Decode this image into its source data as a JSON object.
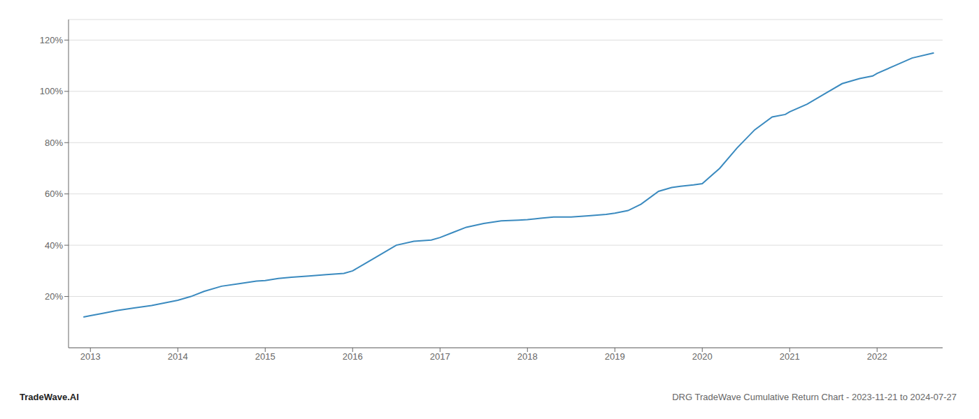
{
  "chart_data": {
    "type": "line",
    "x": [
      2012.92,
      2013.0,
      2013.15,
      2013.3,
      2013.5,
      2013.7,
      2013.85,
      2014.0,
      2014.15,
      2014.3,
      2014.5,
      2014.7,
      2014.9,
      2015.0,
      2015.15,
      2015.3,
      2015.5,
      2015.7,
      2015.9,
      2016.0,
      2016.15,
      2016.3,
      2016.5,
      2016.7,
      2016.9,
      2017.0,
      2017.15,
      2017.3,
      2017.5,
      2017.7,
      2017.9,
      2018.0,
      2018.15,
      2018.3,
      2018.5,
      2018.7,
      2018.9,
      2019.0,
      2019.15,
      2019.3,
      2019.5,
      2019.65,
      2019.75,
      2019.9,
      2020.0,
      2020.2,
      2020.4,
      2020.6,
      2020.8,
      2020.95,
      2021.0,
      2021.2,
      2021.4,
      2021.6,
      2021.8,
      2021.95,
      2022.0,
      2022.2,
      2022.4,
      2022.65
    ],
    "values": [
      12,
      12.5,
      13.5,
      14.5,
      15.5,
      16.5,
      17.5,
      18.5,
      20,
      22,
      24,
      25,
      26,
      26.2,
      27,
      27.5,
      28,
      28.5,
      29,
      30,
      33,
      36,
      40,
      41.5,
      42,
      43,
      45,
      47,
      48.5,
      49.5,
      49.8,
      50,
      50.5,
      51,
      51,
      51.5,
      52,
      52.5,
      53.5,
      56,
      61,
      62.5,
      63,
      63.5,
      64,
      70,
      78,
      85,
      90,
      91,
      92,
      95,
      99,
      103,
      105,
      106,
      107,
      110,
      113,
      115
    ],
    "color": "#3a8abf",
    "xlim": [
      2012.75,
      2022.75
    ],
    "xticks": [
      2013,
      2014,
      2015,
      2016,
      2017,
      2018,
      2019,
      2020,
      2021,
      2022
    ],
    "ylim": [
      0,
      128
    ],
    "yticks": [
      {
        "value": 20,
        "label": "20%"
      },
      {
        "value": 40,
        "label": "40%"
      },
      {
        "value": 60,
        "label": "60%"
      },
      {
        "value": 80,
        "label": "80%"
      },
      {
        "value": 100,
        "label": "100%"
      },
      {
        "value": 120,
        "label": "120%"
      }
    ],
    "grid": true,
    "annotations": [
      "TradeWave.AI",
      "DRG TradeWave Cumulative Return Chart - 2023-11-21 to 2024-07-27"
    ]
  }
}
